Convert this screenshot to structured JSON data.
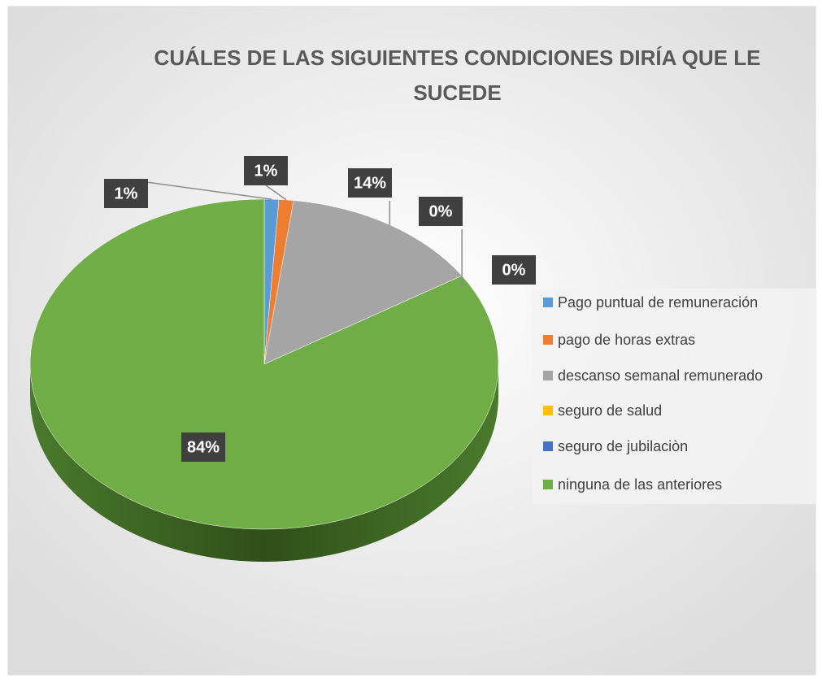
{
  "chart_data": {
    "type": "pie",
    "title": "CUÁLES DE LAS SIGUIENTES CONDICIONES DIRÍA QUE LE SUCEDE",
    "categories": [
      "Pago puntual de remuneración",
      "pago de horas extras",
      "descanso semanal remunerado",
      "seguro de salud",
      "seguro de jubilaciòn",
      "ninguna de las anteriores"
    ],
    "values": [
      1,
      1,
      14,
      0,
      0,
      84
    ],
    "value_labels": [
      "1%",
      "1%",
      "14%",
      "0%",
      "0%",
      "84%"
    ],
    "colors": [
      "#5b9bd5",
      "#ed7d31",
      "#a5a5a5",
      "#ffc000",
      "#4472c4",
      "#70ad47"
    ],
    "legend": "right"
  }
}
